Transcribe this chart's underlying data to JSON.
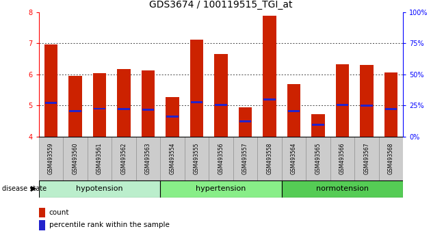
{
  "title": "GDS3674 / 100119515_TGI_at",
  "samples": [
    "GSM493559",
    "GSM493560",
    "GSM493561",
    "GSM493562",
    "GSM493563",
    "GSM493554",
    "GSM493555",
    "GSM493556",
    "GSM493557",
    "GSM493558",
    "GSM493564",
    "GSM493565",
    "GSM493566",
    "GSM493567",
    "GSM493568"
  ],
  "bar_heights": [
    6.97,
    5.95,
    6.05,
    6.18,
    6.12,
    5.28,
    7.12,
    6.65,
    4.95,
    7.88,
    5.7,
    4.72,
    6.32,
    6.3,
    6.07
  ],
  "blue_markers": [
    5.08,
    4.82,
    4.9,
    4.88,
    4.87,
    4.65,
    5.1,
    5.02,
    4.5,
    5.2,
    4.82,
    4.38,
    5.02,
    5.0,
    4.88
  ],
  "groups": [
    {
      "name": "hypotension",
      "start": 0,
      "end": 5
    },
    {
      "name": "hypertension",
      "start": 5,
      "end": 10
    },
    {
      "name": "normotension",
      "start": 10,
      "end": 15
    }
  ],
  "group_colors": [
    "#BBEECC",
    "#88EE88",
    "#55CC55"
  ],
  "ylim": [
    4.0,
    8.0
  ],
  "yticks": [
    4,
    5,
    6,
    7,
    8
  ],
  "bar_color": "#CC2200",
  "blue_color": "#2222CC",
  "title_fontsize": 10,
  "tick_fontsize": 7,
  "bar_width": 0.55,
  "disease_state_label": "disease state"
}
